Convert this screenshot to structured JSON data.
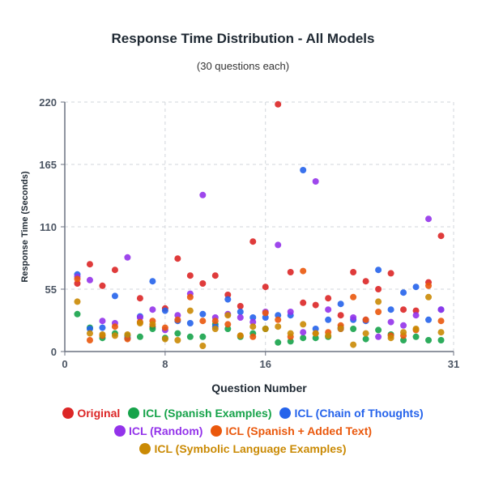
{
  "chart_data": {
    "type": "scatter",
    "title": "Response Time Distribution - All Models",
    "subtitle": "(30 questions each)",
    "xlabel": "Question Number",
    "ylabel": "Response Time (Seconds)",
    "xlim": [
      0,
      31
    ],
    "ylim": [
      0,
      220
    ],
    "xticks": [
      0,
      8,
      16,
      31
    ],
    "yticks": [
      0,
      55,
      110,
      165,
      220
    ],
    "grid": true,
    "legend_position": "bottom",
    "series": [
      {
        "name": "Original",
        "color": "#dc2626",
        "points": [
          [
            1,
            60
          ],
          [
            2,
            77
          ],
          [
            3,
            58
          ],
          [
            4,
            72
          ],
          [
            5,
            12
          ],
          [
            6,
            47
          ],
          [
            7,
            22
          ],
          [
            8,
            38
          ],
          [
            9,
            82
          ],
          [
            10,
            67
          ],
          [
            11,
            60
          ],
          [
            12,
            67
          ],
          [
            13,
            50
          ],
          [
            14,
            40
          ],
          [
            15,
            97
          ],
          [
            16,
            57
          ],
          [
            17,
            218
          ],
          [
            18,
            70
          ],
          [
            19,
            43
          ],
          [
            20,
            41
          ],
          [
            21,
            47
          ],
          [
            22,
            32
          ],
          [
            23,
            70
          ],
          [
            24,
            62
          ],
          [
            25,
            55
          ],
          [
            26,
            69
          ],
          [
            27,
            37
          ],
          [
            28,
            36
          ],
          [
            29,
            61
          ],
          [
            30,
            102
          ]
        ]
      },
      {
        "name": "ICL (Spanish Examples)",
        "color": "#16a34a",
        "points": [
          [
            1,
            33
          ],
          [
            2,
            21
          ],
          [
            3,
            12
          ],
          [
            4,
            16
          ],
          [
            5,
            14
          ],
          [
            6,
            13
          ],
          [
            7,
            20
          ],
          [
            8,
            12
          ],
          [
            9,
            16
          ],
          [
            10,
            13
          ],
          [
            11,
            13
          ],
          [
            12,
            24
          ],
          [
            13,
            20
          ],
          [
            14,
            13
          ],
          [
            15,
            16
          ],
          [
            16,
            20
          ],
          [
            17,
            8
          ],
          [
            18,
            9
          ],
          [
            19,
            12
          ],
          [
            20,
            12
          ],
          [
            21,
            13
          ],
          [
            22,
            21
          ],
          [
            23,
            20
          ],
          [
            24,
            11
          ],
          [
            25,
            19
          ],
          [
            26,
            15
          ],
          [
            27,
            10
          ],
          [
            28,
            13
          ],
          [
            29,
            10
          ],
          [
            30,
            10
          ]
        ]
      },
      {
        "name": "ICL (Chain of Thoughts)",
        "color": "#2563eb",
        "points": [
          [
            1,
            68
          ],
          [
            2,
            20
          ],
          [
            3,
            21
          ],
          [
            4,
            49
          ],
          [
            5,
            12
          ],
          [
            6,
            31
          ],
          [
            7,
            62
          ],
          [
            8,
            36
          ],
          [
            9,
            27
          ],
          [
            10,
            25
          ],
          [
            11,
            33
          ],
          [
            12,
            22
          ],
          [
            13,
            46
          ],
          [
            14,
            35
          ],
          [
            15,
            30
          ],
          [
            16,
            30
          ],
          [
            17,
            32
          ],
          [
            18,
            32
          ],
          [
            19,
            160
          ],
          [
            20,
            20
          ],
          [
            21,
            28
          ],
          [
            22,
            42
          ],
          [
            23,
            28
          ],
          [
            24,
            27
          ],
          [
            25,
            72
          ],
          [
            26,
            37
          ],
          [
            27,
            52
          ],
          [
            28,
            57
          ],
          [
            29,
            28
          ],
          [
            30,
            37
          ]
        ]
      },
      {
        "name": "ICL (Random)",
        "color": "#9333ea",
        "points": [
          [
            1,
            66
          ],
          [
            2,
            63
          ],
          [
            3,
            27
          ],
          [
            4,
            25
          ],
          [
            5,
            83
          ],
          [
            6,
            30
          ],
          [
            7,
            37
          ],
          [
            8,
            19
          ],
          [
            9,
            32
          ],
          [
            10,
            51
          ],
          [
            11,
            138
          ],
          [
            12,
            30
          ],
          [
            13,
            33
          ],
          [
            14,
            30
          ],
          [
            15,
            26
          ],
          [
            16,
            35
          ],
          [
            17,
            94
          ],
          [
            18,
            35
          ],
          [
            19,
            17
          ],
          [
            20,
            150
          ],
          [
            21,
            37
          ],
          [
            22,
            20
          ],
          [
            23,
            30
          ],
          [
            24,
            28
          ],
          [
            25,
            13
          ],
          [
            26,
            26
          ],
          [
            27,
            23
          ],
          [
            28,
            32
          ],
          [
            29,
            117
          ],
          [
            30,
            37
          ]
        ]
      },
      {
        "name": "ICL (Spanish + Added Text)",
        "color": "#ea580c",
        "points": [
          [
            1,
            64
          ],
          [
            2,
            10
          ],
          [
            3,
            14
          ],
          [
            4,
            22
          ],
          [
            5,
            11
          ],
          [
            6,
            26
          ],
          [
            7,
            27
          ],
          [
            8,
            21
          ],
          [
            9,
            28
          ],
          [
            10,
            48
          ],
          [
            11,
            27
          ],
          [
            12,
            27
          ],
          [
            13,
            24
          ],
          [
            14,
            14
          ],
          [
            15,
            13
          ],
          [
            16,
            34
          ],
          [
            17,
            28
          ],
          [
            18,
            13
          ],
          [
            19,
            71
          ],
          [
            20,
            16
          ],
          [
            21,
            17
          ],
          [
            22,
            23
          ],
          [
            23,
            48
          ],
          [
            24,
            28
          ],
          [
            25,
            35
          ],
          [
            26,
            14
          ],
          [
            27,
            14
          ],
          [
            28,
            19
          ],
          [
            29,
            58
          ],
          [
            30,
            27
          ]
        ]
      },
      {
        "name": "ICL (Symbolic Language Examples)",
        "color": "#ca8a04",
        "points": [
          [
            1,
            44
          ],
          [
            2,
            16
          ],
          [
            3,
            15
          ],
          [
            4,
            14
          ],
          [
            5,
            15
          ],
          [
            6,
            25
          ],
          [
            7,
            24
          ],
          [
            8,
            11
          ],
          [
            9,
            10
          ],
          [
            10,
            36
          ],
          [
            11,
            5
          ],
          [
            12,
            20
          ],
          [
            13,
            32
          ],
          [
            14,
            14
          ],
          [
            15,
            22
          ],
          [
            16,
            20
          ],
          [
            17,
            22
          ],
          [
            18,
            16
          ],
          [
            19,
            24
          ],
          [
            20,
            16
          ],
          [
            21,
            14
          ],
          [
            22,
            20
          ],
          [
            23,
            6
          ],
          [
            24,
            16
          ],
          [
            25,
            44
          ],
          [
            26,
            12
          ],
          [
            27,
            17
          ],
          [
            28,
            20
          ],
          [
            29,
            48
          ],
          [
            30,
            17
          ]
        ]
      }
    ]
  }
}
